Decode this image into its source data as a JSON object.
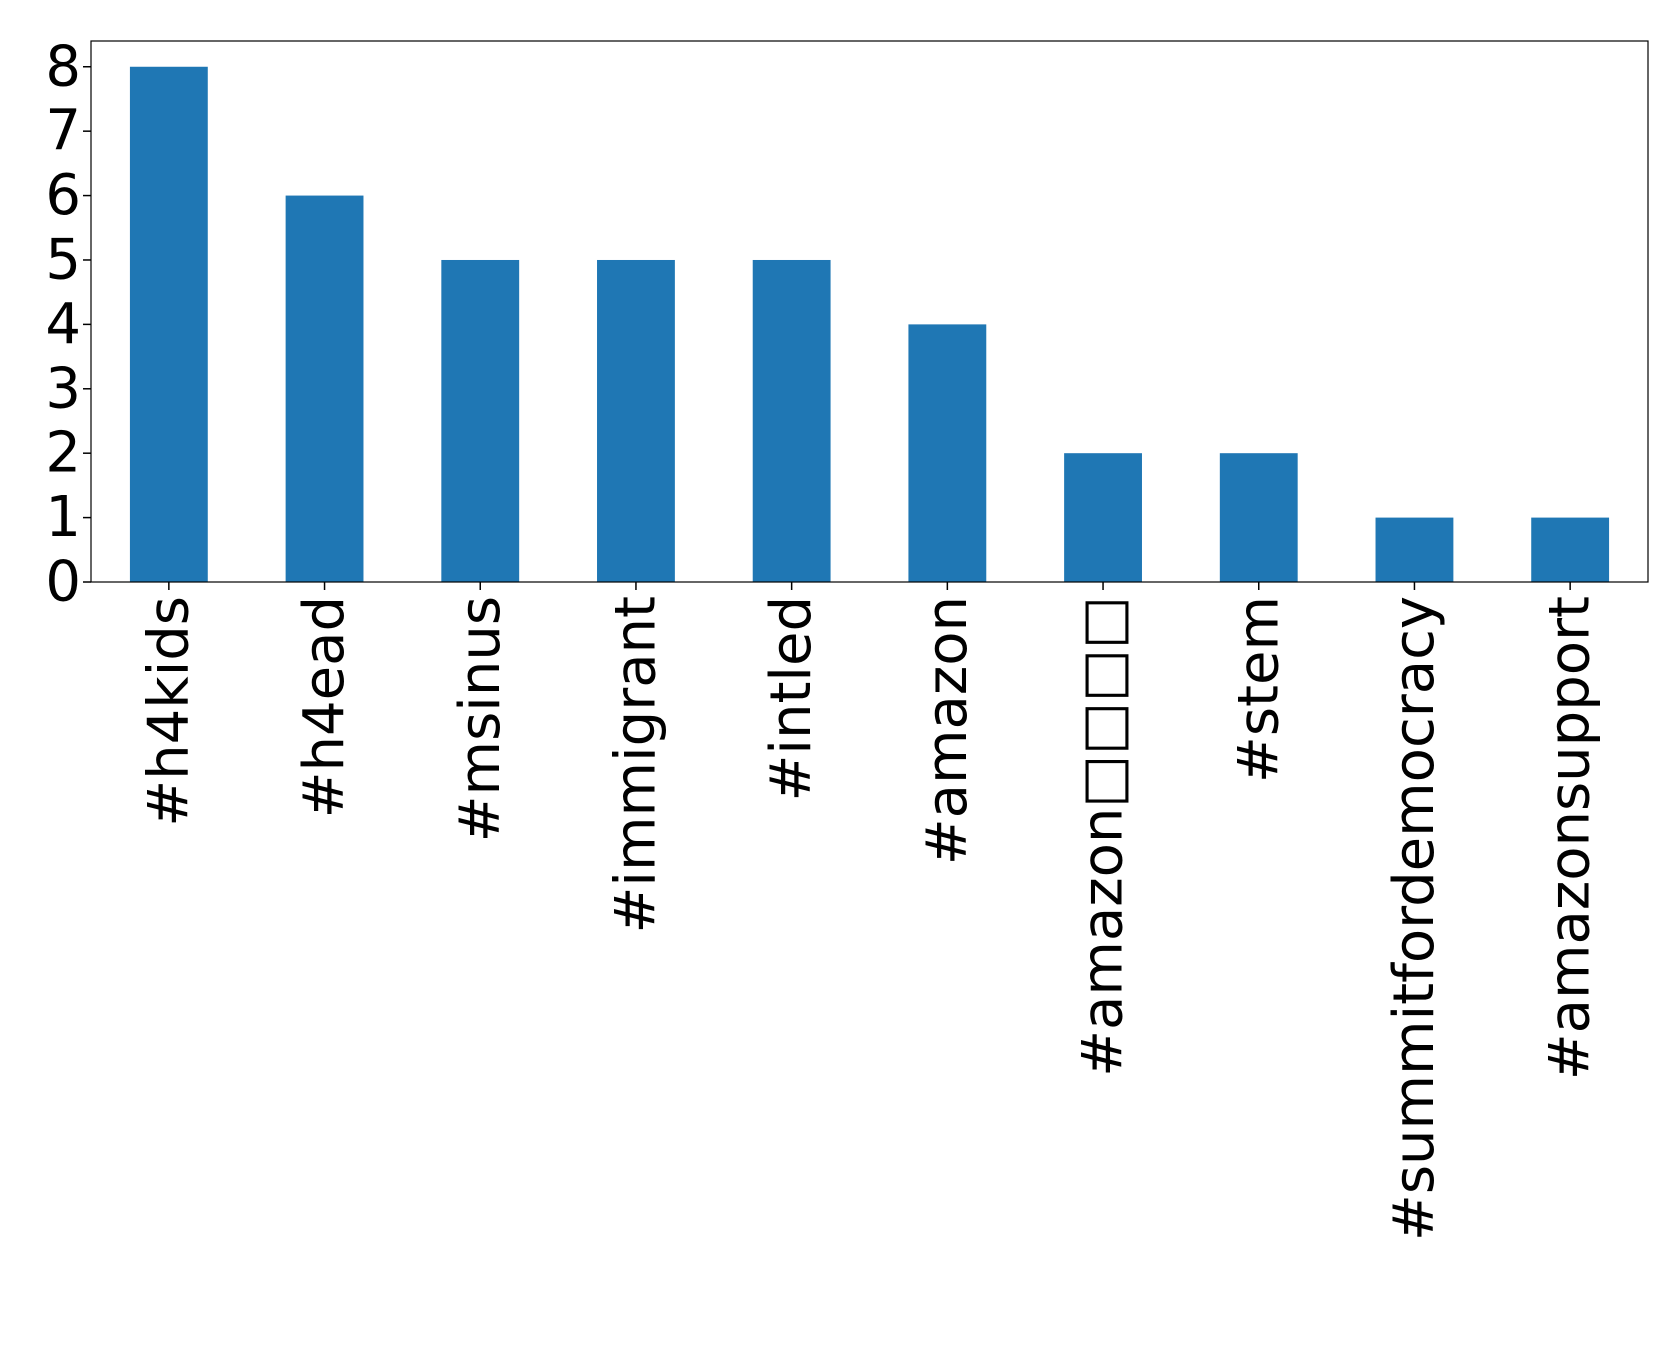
{
  "chart_data": {
    "type": "bar",
    "categories": [
      "#h4kids",
      "#h4ead",
      "#msinus",
      "#immigrant",
      "#intled",
      "#amazon",
      "#amazon□□□□",
      "#stem",
      "#summitfordemocracy",
      "#amazonsupport"
    ],
    "values": [
      8,
      6,
      5,
      5,
      5,
      4,
      2,
      2,
      1,
      1
    ],
    "color": "#1f77b4",
    "ylim": [
      0,
      8.4
    ],
    "yticks": [
      0,
      1,
      2,
      3,
      4,
      5,
      6,
      7,
      8
    ],
    "grid": false
  }
}
